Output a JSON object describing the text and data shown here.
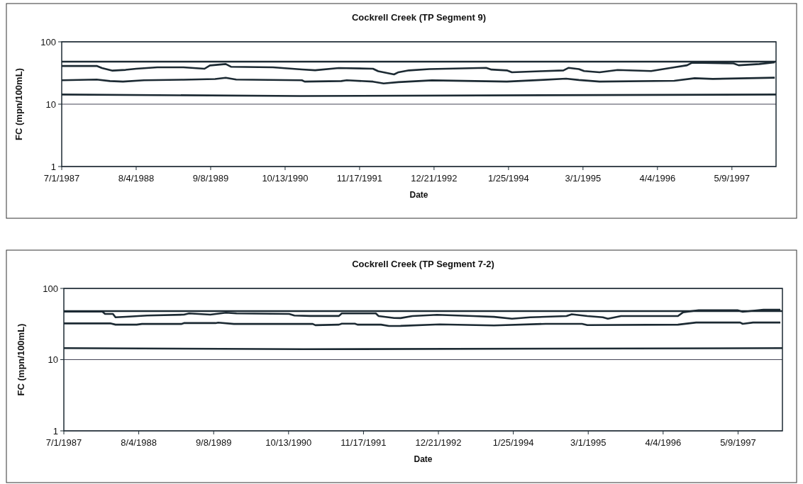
{
  "chart_data": [
    {
      "type": "line",
      "title": "Cockrell Creek (TP Segment 9)",
      "xlabel": "Date",
      "ylabel": "FC (mpn/100mL)",
      "log": true,
      "grid": "y",
      "line_style": "solid",
      "xlim": [
        "1987-07-01",
        "1998-01-01"
      ],
      "ylim": [
        1,
        100
      ],
      "yticks": [
        1,
        10,
        100
      ],
      "xticks": [
        {
          "value": "1987-07-01",
          "label": "7/1/1987"
        },
        {
          "value": "1988-08-04",
          "label": "8/4/1988"
        },
        {
          "value": "1989-09-08",
          "label": "9/8/1989"
        },
        {
          "value": "1990-10-13",
          "label": "10/13/1990"
        },
        {
          "value": "1991-11-17",
          "label": "11/17/1991"
        },
        {
          "value": "1992-12-21",
          "label": "12/21/1992"
        },
        {
          "value": "1994-01-25",
          "label": "1/25/1994"
        },
        {
          "value": "1995-03-01",
          "label": "3/1/1995"
        },
        {
          "value": "1996-04-04",
          "label": "4/4/1996"
        },
        {
          "value": "1997-05-09",
          "label": "5/9/1997"
        }
      ],
      "series": [
        {
          "color": "#1c2a33",
          "x": [
            "1987-07-01",
            "1998-01-01"
          ],
          "values": [
            48,
            48
          ]
        },
        {
          "color": "#1c2a33",
          "x": [
            "1987-07-01",
            "1988-01-05",
            "1988-02-02",
            "1988-03-30",
            "1988-06-08",
            "1988-08-04",
            "1988-11-25",
            "1989-04-15",
            "1989-08-06",
            "1989-09-04",
            "1989-11-28",
            "1989-12-26",
            "1990-08-09",
            "1991-01-11",
            "1991-03-23",
            "1991-07-28",
            "1992-01-28",
            "1992-02-25",
            "1992-05-20",
            "1992-06-13",
            "1992-08-08",
            "1992-11-26",
            "1993-09-27",
            "1993-10-25",
            "1994-01-16",
            "1994-02-12",
            "1994-07-15",
            "1994-11-16",
            "1994-12-14",
            "1995-02-07",
            "1995-03-07",
            "1995-05-29",
            "1995-09-03",
            "1996-03-01",
            "1996-07-03",
            "1996-09-10",
            "1996-10-08",
            "1997-05-18",
            "1997-06-14",
            "1997-10-03",
            "1997-12-25"
          ],
          "values": [
            41,
            41,
            38,
            34.5,
            35.5,
            37,
            39,
            39,
            37,
            41.8,
            44,
            39.8,
            39,
            36,
            35,
            38,
            37,
            33.8,
            30,
            32.5,
            34.8,
            36.5,
            38.3,
            35.9,
            34.8,
            32.5,
            33.8,
            34.8,
            38.3,
            36.5,
            34,
            32.5,
            35.4,
            34,
            39,
            42,
            46.4,
            45,
            42,
            44,
            47
          ]
        },
        {
          "color": "#1c2a33",
          "x": [
            "1987-07-01",
            "1988-01-05",
            "1988-03-16",
            "1988-05-25",
            "1988-09-15",
            "1989-04-15",
            "1989-10-02",
            "1989-11-28",
            "1990-01-23",
            "1991-01-11",
            "1991-01-26",
            "1991-08-11",
            "1991-09-09",
            "1992-01-28",
            "1992-03-25",
            "1992-06-13",
            "1992-12-10",
            "1994-01-16",
            "1994-07-15",
            "1994-11-30",
            "1995-02-07",
            "1995-05-29",
            "1996-07-03",
            "1996-10-21",
            "1997-01-26",
            "1997-12-25"
          ],
          "values": [
            24.2,
            24.8,
            23.5,
            23,
            24.2,
            24.7,
            25.3,
            26.5,
            24.8,
            24.2,
            23,
            23.5,
            24.2,
            23,
            21.5,
            22.6,
            24.1,
            23,
            24.4,
            25.6,
            24.4,
            23,
            23.7,
            26.1,
            25.4,
            26.6
          ]
        },
        {
          "color": "#1c2a33",
          "x": [
            "1987-07-01",
            "1991-01-01",
            "1998-01-01"
          ],
          "values": [
            14.3,
            13.5,
            14.3
          ]
        }
      ]
    },
    {
      "type": "line",
      "title": "Cockrell Creek (TP Segment 7-2)",
      "xlabel": "Date",
      "ylabel": "FC (mpn/100mL)",
      "log": true,
      "grid": "y",
      "line_style": "solid",
      "xlim": [
        "1987-07-01",
        "1998-01-01"
      ],
      "ylim": [
        1,
        100
      ],
      "yticks": [
        1,
        10,
        100
      ],
      "xticks": [
        {
          "value": "1987-07-01",
          "label": "7/1/1987"
        },
        {
          "value": "1988-08-04",
          "label": "8/4/1988"
        },
        {
          "value": "1989-09-08",
          "label": "9/8/1989"
        },
        {
          "value": "1990-10-13",
          "label": "10/13/1990"
        },
        {
          "value": "1991-11-17",
          "label": "11/17/1991"
        },
        {
          "value": "1992-12-21",
          "label": "12/21/1992"
        },
        {
          "value": "1994-01-25",
          "label": "1/25/1994"
        },
        {
          "value": "1995-03-01",
          "label": "3/1/1995"
        },
        {
          "value": "1996-04-04",
          "label": "4/4/1996"
        },
        {
          "value": "1997-05-09",
          "label": "5/9/1997"
        }
      ],
      "series": [
        {
          "color": "#1c2a33",
          "x": [
            "1987-07-01",
            "1998-01-01"
          ],
          "values": [
            48,
            48
          ]
        },
        {
          "color": "#1c2a33",
          "x": [
            "1987-07-01",
            "1988-01-23",
            "1988-02-06",
            "1988-03-19",
            "1988-04-02",
            "1988-05-29",
            "1988-09-18",
            "1989-04-02",
            "1989-04-30",
            "1989-08-21",
            "1989-11-13",
            "1990-01-08",
            "1990-10-16",
            "1990-11-13",
            "1991-02-05",
            "1991-07-09",
            "1991-07-24",
            "1992-01-22",
            "1992-02-05",
            "1992-04-29",
            "1992-06-02",
            "1992-08-04",
            "1992-12-14",
            "1993-06-25",
            "1993-10-14",
            "1994-01-18",
            "1994-04-25",
            "1994-11-05",
            "1994-12-03",
            "1995-02-24",
            "1995-05-18",
            "1995-06-14",
            "1995-08-23",
            "1996-06-22",
            "1996-07-20",
            "1996-10-11",
            "1997-05-06",
            "1997-06-03",
            "1997-09-22",
            "1997-12-21"
          ],
          "values": [
            47.3,
            47.3,
            43.9,
            43.9,
            39.3,
            40,
            41.7,
            42.8,
            44.6,
            42.8,
            45.7,
            44.6,
            43.9,
            41.7,
            41,
            41,
            44.6,
            44.6,
            41,
            38.4,
            38.3,
            40.9,
            42.6,
            40.9,
            39.9,
            37.6,
            39.3,
            40.9,
            43.3,
            40.9,
            39.3,
            37.6,
            40.9,
            40.9,
            46.3,
            49.4,
            49.4,
            47,
            50.3,
            50.3
          ]
        },
        {
          "color": "#1c2a33",
          "x": [
            "1987-07-01",
            "1988-03-05",
            "1988-04-02",
            "1988-07-24",
            "1988-08-21",
            "1989-03-19",
            "1989-04-02",
            "1989-09-18",
            "1989-10-02",
            "1989-12-25",
            "1991-02-19",
            "1991-03-05",
            "1991-07-09",
            "1991-07-24",
            "1991-10-02",
            "1991-10-16",
            "1992-02-19",
            "1992-04-01",
            "1992-06-02",
            "1992-12-28",
            "1993-07-09",
            "1993-10-14",
            "1994-07-17",
            "1995-01-27",
            "1995-02-24",
            "1996-06-22",
            "1996-09-27",
            "1997-05-20",
            "1997-06-03",
            "1997-07-28",
            "1997-12-21"
          ],
          "values": [
            32.3,
            32.3,
            31,
            31,
            31.7,
            31.7,
            32.6,
            32.6,
            33.1,
            31.7,
            31.7,
            30.5,
            31,
            32,
            32,
            31,
            31,
            29.7,
            29.8,
            31.3,
            30.6,
            30.2,
            31.8,
            31.8,
            30.6,
            31,
            33.2,
            33.2,
            31.8,
            33.2,
            33.2
          ]
        },
        {
          "color": "#1c2a33",
          "x": [
            "1987-07-01",
            "1991-01-01",
            "1998-01-01"
          ],
          "values": [
            14.5,
            14,
            14.5
          ]
        }
      ]
    }
  ]
}
